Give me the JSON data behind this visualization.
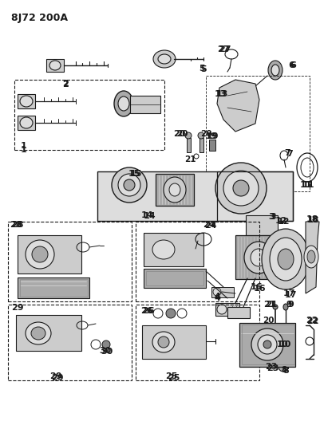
{
  "title": "8J72 200A",
  "bg_color": "#ffffff",
  "line_color": "#1a1a1a",
  "fig_width": 4.02,
  "fig_height": 5.33,
  "dpi": 100
}
